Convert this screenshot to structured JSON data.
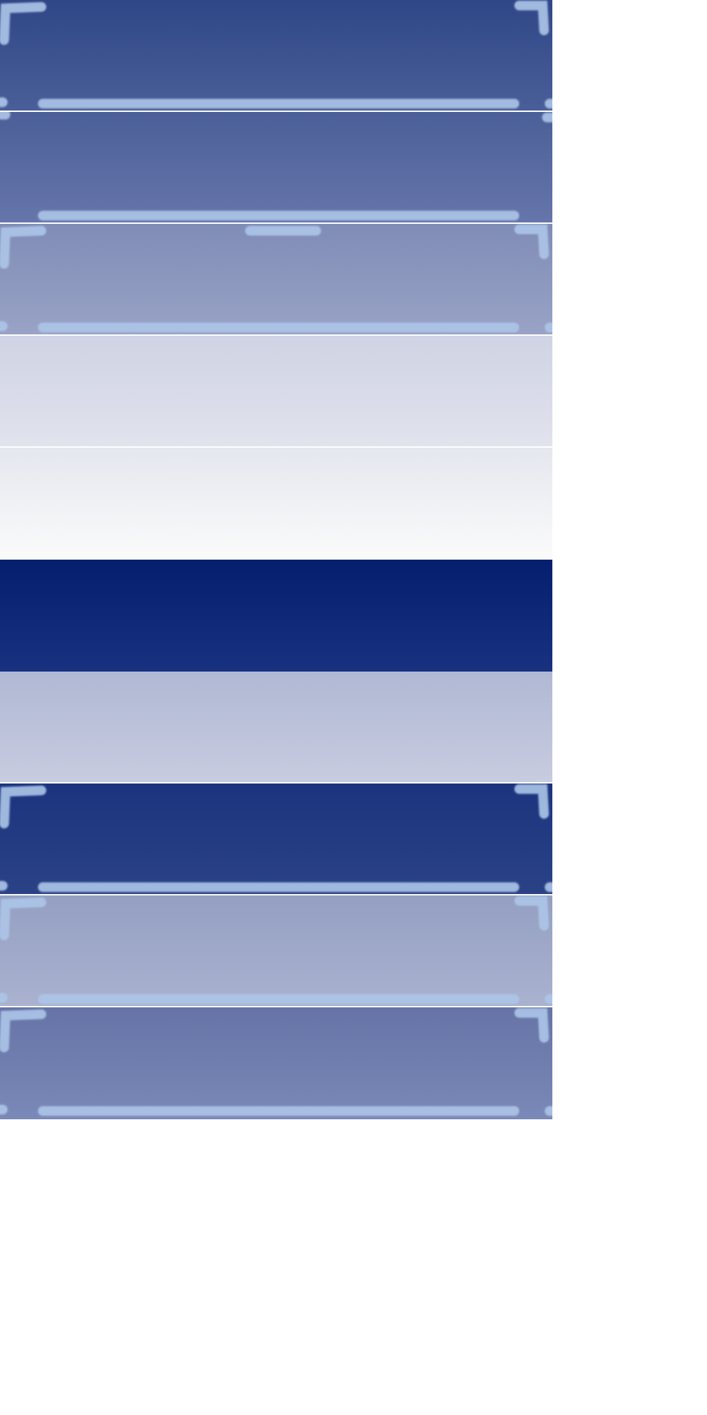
{
  "sprite_sheet": {
    "tiles": [
      {
        "id": "tile-1",
        "top": "#2f4787",
        "bottom": "#4a5f99",
        "frame": "full"
      },
      {
        "id": "tile-2",
        "top": "#4b5f98",
        "bottom": "#6676ab",
        "frame": "bottom-only"
      },
      {
        "id": "tile-3",
        "top": "#7f8cb6",
        "bottom": "#9aa3c6",
        "frame": "full-top-notch"
      },
      {
        "id": "tile-4",
        "top": "#cfd3e3",
        "bottom": "#e1e3ed",
        "frame": "none"
      },
      {
        "id": "tile-5",
        "top": "#e5e7ef",
        "bottom": "#fbfbfb",
        "frame": "none"
      },
      {
        "id": "tile-6",
        "top": "#051e6e",
        "bottom": "#183281",
        "frame": "none"
      },
      {
        "id": "tile-7",
        "top": "#b0b8d4",
        "bottom": "#c8cce0",
        "frame": "none"
      },
      {
        "id": "tile-8",
        "top": "#1b347e",
        "bottom": "#2b4286",
        "frame": "full"
      },
      {
        "id": "tile-9",
        "top": "#949fc2",
        "bottom": "#aab2cf",
        "frame": "full"
      },
      {
        "id": "tile-10",
        "top": "#6573a6",
        "bottom": "#7b89b8",
        "frame": "full"
      }
    ],
    "frame_color": "#adc6e8",
    "background": "#ffffff"
  }
}
